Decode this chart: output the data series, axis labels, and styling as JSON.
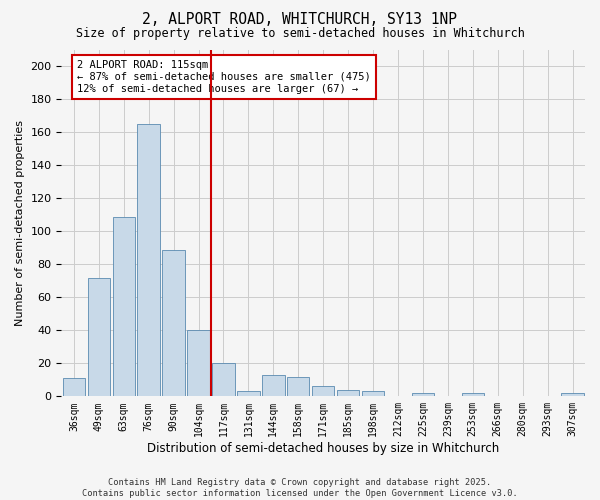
{
  "title": "2, ALPORT ROAD, WHITCHURCH, SY13 1NP",
  "subtitle": "Size of property relative to semi-detached houses in Whitchurch",
  "xlabel": "Distribution of semi-detached houses by size in Whitchurch",
  "ylabel": "Number of semi-detached properties",
  "categories": [
    "36sqm",
    "49sqm",
    "63sqm",
    "76sqm",
    "90sqm",
    "104sqm",
    "117sqm",
    "131sqm",
    "144sqm",
    "158sqm",
    "171sqm",
    "185sqm",
    "198sqm",
    "212sqm",
    "225sqm",
    "239sqm",
    "253sqm",
    "266sqm",
    "280sqm",
    "293sqm",
    "307sqm"
  ],
  "values": [
    11,
    72,
    109,
    165,
    89,
    40,
    20,
    3,
    13,
    12,
    6,
    4,
    3,
    0,
    2,
    0,
    2,
    0,
    0,
    0,
    2
  ],
  "bar_color": "#c8d9e8",
  "bar_edge_color": "#5a8ab0",
  "vline_index": 6,
  "vline_color": "#cc0000",
  "annotation_line1": "2 ALPORT ROAD: 115sqm",
  "annotation_line2": "← 87% of semi-detached houses are smaller (475)",
  "annotation_line3": "12% of semi-detached houses are larger (67) →",
  "annotation_box_color": "#cc0000",
  "ylim": [
    0,
    210
  ],
  "yticks": [
    0,
    20,
    40,
    60,
    80,
    100,
    120,
    140,
    160,
    180,
    200
  ],
  "background_color": "#f5f5f5",
  "grid_color": "#cccccc",
  "footer": "Contains HM Land Registry data © Crown copyright and database right 2025.\nContains public sector information licensed under the Open Government Licence v3.0."
}
